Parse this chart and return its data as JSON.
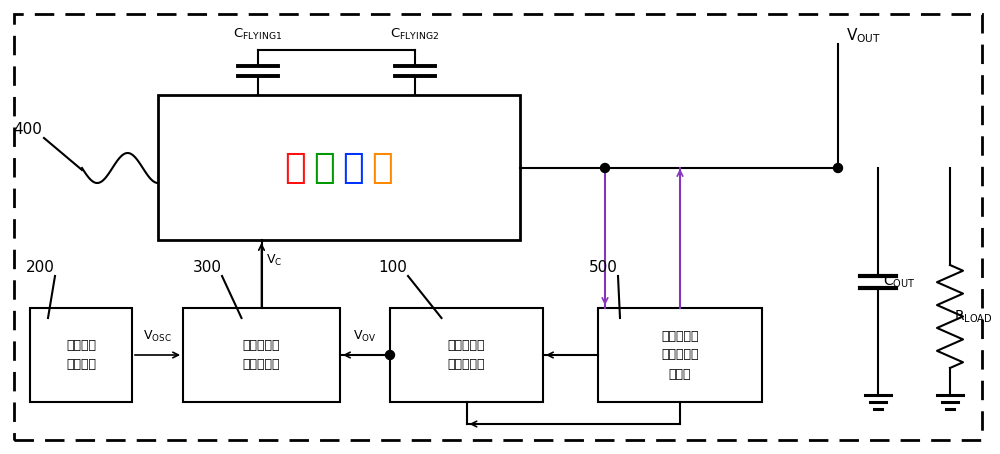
{
  "fig_width": 10.0,
  "fig_height": 4.54,
  "dpi": 100,
  "bg_color": "#ffffff",
  "boost_text_chars": [
    "升",
    "压",
    "模",
    "块"
  ],
  "boost_text_colors": [
    "#ff1111",
    "#009900",
    "#0033ff",
    "#ff8800"
  ],
  "box1_text": "工作时钟\n产生模块",
  "box2_text": "升压控制信\n号产生模块",
  "box3_text": "过压保护信\n号产生模块",
  "box4_text": "输出电压纹\n波检测和控\n制模块",
  "label_400": "400",
  "label_200": "200",
  "label_300": "300",
  "label_100": "100",
  "label_500": "500",
  "purple": "#8833bb"
}
